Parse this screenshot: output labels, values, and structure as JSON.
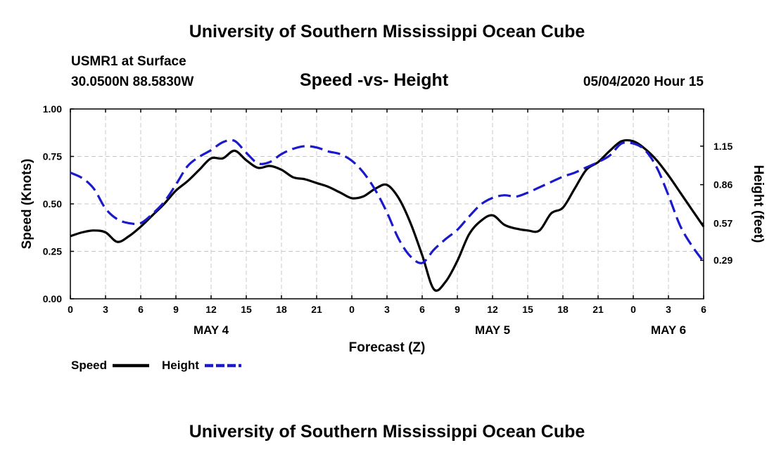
{
  "header": {
    "title": "University of Southern Mississippi Ocean Cube",
    "station": "USMR1 at Surface",
    "coords": "30.0500N 88.5830W",
    "timestamp": "05/04/2020 Hour 15"
  },
  "footer": {
    "title": "University of Southern Mississippi Ocean Cube"
  },
  "colors": {
    "speed": "#000000",
    "height": "#1a1acc",
    "grid": "#c8c8c8"
  },
  "chart_data": {
    "type": "line",
    "title": "Speed -vs- Height",
    "xlabel": "Forecast (Z)",
    "ylabel": "Speed (Knots)",
    "y2label": "Height (feet)",
    "xlim": [
      0,
      54
    ],
    "ylim": [
      0,
      1.0
    ],
    "y2lim": [
      0.0,
      1.43
    ],
    "x_ticks": [
      0,
      3,
      6,
      9,
      12,
      15,
      18,
      21,
      24,
      27,
      30,
      33,
      36,
      39,
      42,
      45,
      48,
      51,
      54
    ],
    "x_tick_labels": [
      "0",
      "3",
      "6",
      "9",
      "12",
      "15",
      "18",
      "21",
      "0",
      "3",
      "6",
      "9",
      "12",
      "15",
      "18",
      "21",
      "0",
      "3",
      "6"
    ],
    "day_labels": [
      {
        "x": 12,
        "label": "MAY 4"
      },
      {
        "x": 36,
        "label": "MAY 5"
      },
      {
        "x": 51,
        "label": "MAY 6"
      }
    ],
    "y_ticks": [
      0.0,
      0.25,
      0.5,
      0.75,
      1.0
    ],
    "y_tick_labels": [
      "0.00",
      "0.25",
      "0.50",
      "0.75",
      "1.00"
    ],
    "y2_ticks": [
      0.29,
      0.57,
      0.86,
      1.15
    ],
    "y2_tick_labels": [
      "0.29",
      "0.57",
      "0.86",
      "1.15"
    ],
    "series": [
      {
        "name": "Speed",
        "axis": "left",
        "style": "solid",
        "x": [
          0,
          1,
          2,
          3,
          4,
          5,
          6,
          7,
          8,
          9,
          10,
          11,
          12,
          13,
          14,
          15,
          16,
          17,
          18,
          19,
          20,
          21,
          22,
          23,
          24,
          25,
          26,
          27,
          28,
          29,
          30,
          31,
          32,
          33,
          34,
          35,
          36,
          37,
          38,
          39,
          40,
          41,
          42,
          43,
          44,
          45,
          46,
          47,
          48,
          49,
          50,
          51,
          52,
          53,
          54
        ],
        "values": [
          0.33,
          0.35,
          0.36,
          0.35,
          0.3,
          0.33,
          0.38,
          0.44,
          0.5,
          0.57,
          0.62,
          0.68,
          0.74,
          0.74,
          0.78,
          0.73,
          0.69,
          0.7,
          0.68,
          0.64,
          0.63,
          0.61,
          0.59,
          0.56,
          0.53,
          0.54,
          0.58,
          0.6,
          0.53,
          0.4,
          0.23,
          0.05,
          0.09,
          0.2,
          0.34,
          0.41,
          0.44,
          0.39,
          0.37,
          0.36,
          0.36,
          0.45,
          0.48,
          0.58,
          0.68,
          0.72,
          0.78,
          0.83,
          0.83,
          0.79,
          0.73,
          0.65,
          0.56,
          0.47,
          0.38
        ]
      },
      {
        "name": "Height",
        "axis": "right",
        "style": "dashed",
        "x": [
          0,
          1,
          2,
          3,
          4,
          5,
          6,
          7,
          8,
          9,
          10,
          11,
          12,
          13,
          14,
          15,
          16,
          17,
          18,
          19,
          20,
          21,
          22,
          23,
          24,
          25,
          26,
          27,
          28,
          29,
          30,
          31,
          32,
          33,
          34,
          35,
          36,
          37,
          38,
          39,
          40,
          41,
          42,
          43,
          44,
          45,
          46,
          47,
          48,
          49,
          50,
          51,
          52,
          53,
          54
        ],
        "values": [
          0.95,
          0.91,
          0.83,
          0.68,
          0.6,
          0.57,
          0.57,
          0.64,
          0.73,
          0.86,
          1.0,
          1.07,
          1.12,
          1.18,
          1.19,
          1.1,
          1.02,
          1.03,
          1.09,
          1.13,
          1.15,
          1.14,
          1.11,
          1.09,
          1.04,
          0.95,
          0.82,
          0.65,
          0.45,
          0.32,
          0.27,
          0.37,
          0.45,
          0.52,
          0.62,
          0.71,
          0.76,
          0.78,
          0.77,
          0.8,
          0.84,
          0.88,
          0.92,
          0.95,
          0.99,
          1.03,
          1.08,
          1.17,
          1.17,
          1.12,
          0.99,
          0.78,
          0.55,
          0.4,
          0.28
        ]
      }
    ],
    "legend": [
      {
        "label": "Speed",
        "style": "solid"
      },
      {
        "label": "Height",
        "style": "dashed"
      }
    ],
    "grid": true,
    "legend_position": "bottom-left"
  }
}
